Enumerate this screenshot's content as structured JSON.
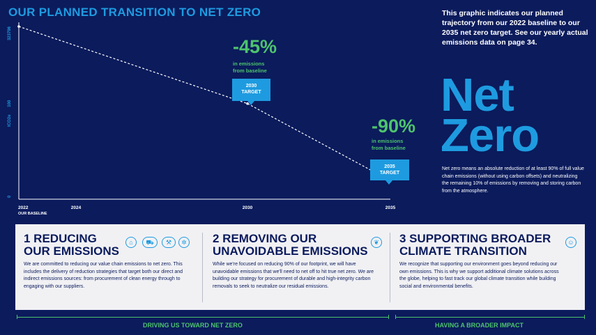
{
  "title": "OUR PLANNED TRANSITION TO NET ZERO",
  "intro": "This graphic indicates our planned trajectory from our 2022 baseline to our 2035 net zero target. See our yearly actual emissions data on page 34.",
  "net_zero": {
    "heading_line1": "Net",
    "heading_line2": "Zero",
    "description": "Net zero means an absolute reduction of at least 90% of full value chain emissions (without using carbon offsets) and neutralizing the remaining 10% of emissions by removing and storing carbon from the atmosphere."
  },
  "chart_data": {
    "type": "line",
    "ylabel": "tCO2e",
    "y_ticks": [
      "323796",
      "100",
      "0"
    ],
    "x_ticks": [
      "2022",
      "2024",
      "2030",
      "2035"
    ],
    "x_baseline_label": "OUR BASELINE",
    "series": [
      {
        "x": [
          2022,
          2030,
          2035
        ],
        "y": [
          100,
          55,
          10
        ]
      }
    ],
    "ylim": [
      0,
      100
    ],
    "xlim": [
      2022,
      2035
    ],
    "annotations": [
      {
        "pct": "-45%",
        "sub1": "in emissions",
        "sub2": "from baseline",
        "box1": "2030",
        "box2": "TARGET"
      },
      {
        "pct": "-90%",
        "sub1": "in emissions",
        "sub2": "from baseline",
        "box1": "2035",
        "box2": "TARGET"
      }
    ]
  },
  "pillars": [
    {
      "title_line1": "1 REDUCING",
      "title_line2": "OUR EMISSIONS",
      "body": "We are committed to reducing our value chain emissions to net zero. This includes the delivery of reduction strategies that target both our direct and indirect emissions sources: from procurement of clean energy through to engaging with our suppliers."
    },
    {
      "title_line1": "2 REMOVING OUR",
      "title_line2": "UNAVOIDABLE EMISSIONS",
      "body": "While we're focused on reducing 90% of our footprint, we will have unavoidable emissions that we'll need to net off to hit true net zero. We are building our strategy for procurement of durable and high-integrity carbon removals to seek to neutralize our residual emissions."
    },
    {
      "title_line1": "3 SUPPORTING BROADER",
      "title_line2": "CLIMATE TRANSITION",
      "body": "We recognize that supporting our environment goes beyond reducing our own emissions. This is why we support additional climate solutions across the globe, helping to fast track our global climate transition while building social and environmental benefits."
    }
  ],
  "footer": {
    "left": "DRIVING US TOWARD NET ZERO",
    "right": "HAVING A BROADER IMPACT"
  },
  "colors": {
    "background": "#0b1b5c",
    "accent_blue": "#1e9be0",
    "accent_green": "#4ec36d",
    "panel": "#f1f1f4"
  },
  "icons": [
    "building-icon",
    "truck-icon",
    "factory-icon",
    "gear-network-icon",
    "leaf-icon",
    "globe-hand-icon"
  ]
}
